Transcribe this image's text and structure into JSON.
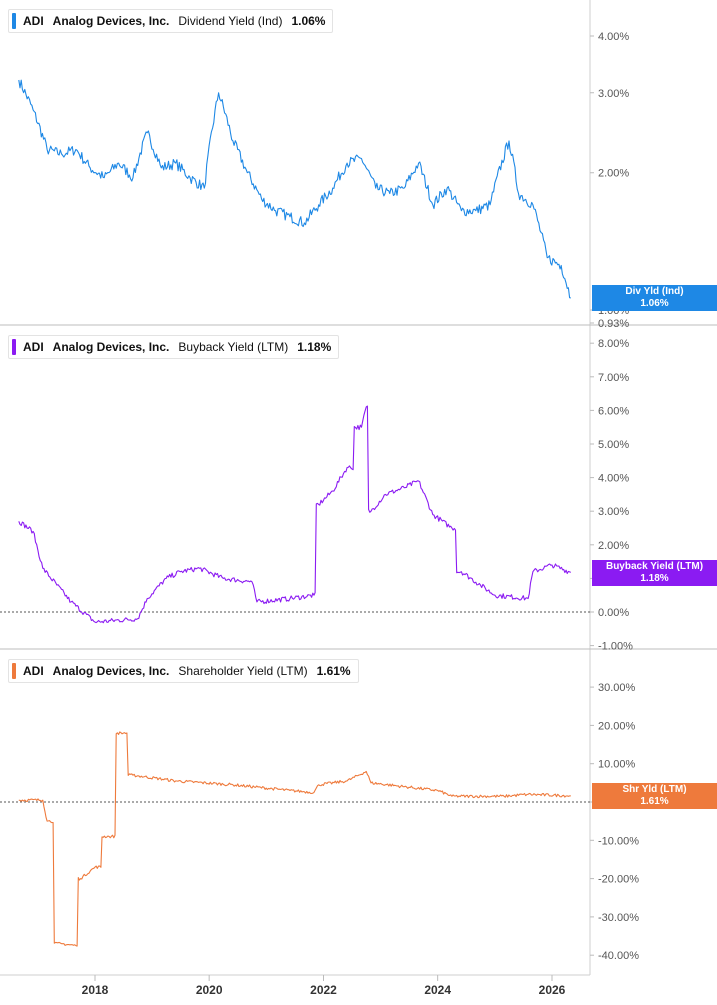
{
  "x_axis": {
    "tick_labels": [
      "2018",
      "2020",
      "2022",
      "2024",
      "2026"
    ]
  },
  "colors": {
    "dividend": "#1e88e5",
    "buyback": "#8b1bf2",
    "shareholder": "#ee7a3c",
    "zero_line": "#555555"
  },
  "panels": [
    {
      "ticker": "ADI",
      "company": "Analog Devices, Inc.",
      "metric": "Dividend Yield (Ind)",
      "value": "1.06%",
      "tag_label": "Div Yld (Ind)",
      "tag_value": "1.06%",
      "y_ticks": [
        "4.00%",
        "3.00%",
        "2.00%",
        "1.00%",
        "0.93%"
      ]
    },
    {
      "ticker": "ADI",
      "company": "Analog Devices, Inc.",
      "metric": "Buyback Yield (LTM)",
      "value": "1.18%",
      "tag_label": "Buyback Yield (LTM)",
      "tag_value": "1.18%",
      "y_ticks": [
        "8.00%",
        "7.00%",
        "6.00%",
        "5.00%",
        "4.00%",
        "3.00%",
        "2.00%",
        "1.00%",
        "0.00%",
        "-1.00%"
      ]
    },
    {
      "ticker": "ADI",
      "company": "Analog Devices, Inc.",
      "metric": "Shareholder Yield (LTM)",
      "value": "1.61%",
      "tag_label": "Shr Yld (LTM)",
      "tag_value": "1.61%",
      "y_ticks": [
        "30.00%",
        "20.00%",
        "10.00%",
        "0.00%",
        "-10.00%",
        "-20.00%",
        "-30.00%",
        "-40.00%"
      ]
    }
  ],
  "chart_data": [
    {
      "type": "line",
      "title": "ADI Analog Devices, Inc. Dividend Yield (Ind) 1.06%",
      "y_scale": "log",
      "ylim": [
        0.93,
        4.6
      ],
      "xlim": [
        "2016-08-01",
        "2026-08-01"
      ],
      "series": [
        {
          "name": "Dividend Yield (Ind)",
          "unit": "%",
          "points": [
            [
              "2016-09-01",
              3.2
            ],
            [
              "2016-12-01",
              2.75
            ],
            [
              "2017-03-01",
              2.25
            ],
            [
              "2017-06-01",
              2.2
            ],
            [
              "2017-09-01",
              2.25
            ],
            [
              "2017-12-01",
              2.05
            ],
            [
              "2018-03-01",
              1.95
            ],
            [
              "2018-06-01",
              2.1
            ],
            [
              "2018-09-01",
              1.95
            ],
            [
              "2018-12-01",
              2.45
            ],
            [
              "2019-03-01",
              2.05
            ],
            [
              "2019-06-01",
              2.1
            ],
            [
              "2019-09-01",
              1.95
            ],
            [
              "2019-12-01",
              1.85
            ],
            [
              "2020-03-01",
              3.0
            ],
            [
              "2020-06-01",
              2.35
            ],
            [
              "2020-09-01",
              2.0
            ],
            [
              "2020-12-01",
              1.75
            ],
            [
              "2021-03-01",
              1.65
            ],
            [
              "2021-06-01",
              1.6
            ],
            [
              "2021-09-01",
              1.55
            ],
            [
              "2021-12-01",
              1.7
            ],
            [
              "2022-03-01",
              1.85
            ],
            [
              "2022-06-01",
              2.1
            ],
            [
              "2022-09-01",
              2.15
            ],
            [
              "2022-12-01",
              1.85
            ],
            [
              "2023-03-01",
              1.8
            ],
            [
              "2023-06-01",
              1.85
            ],
            [
              "2023-09-01",
              2.1
            ],
            [
              "2023-12-01",
              1.7
            ],
            [
              "2024-03-01",
              1.85
            ],
            [
              "2024-06-01",
              1.65
            ],
            [
              "2024-09-01",
              1.65
            ],
            [
              "2024-12-01",
              1.7
            ],
            [
              "2025-04-01",
              2.35
            ],
            [
              "2025-06-01",
              1.8
            ],
            [
              "2025-09-01",
              1.7
            ],
            [
              "2025-12-01",
              1.3
            ],
            [
              "2026-03-01",
              1.25
            ],
            [
              "2026-05-01",
              1.06
            ]
          ]
        }
      ]
    },
    {
      "type": "line",
      "title": "ADI Analog Devices, Inc. Buyback Yield (LTM) 1.18%",
      "ylim": [
        -1.0,
        8.0
      ],
      "xlim": [
        "2016-08-01",
        "2026-08-01"
      ],
      "series": [
        {
          "name": "Buyback Yield (LTM)",
          "unit": "%",
          "points": [
            [
              "2016-09-01",
              2.7
            ],
            [
              "2016-12-01",
              2.4
            ],
            [
              "2017-02-01",
              1.3
            ],
            [
              "2017-08-01",
              0.3
            ],
            [
              "2018-01-01",
              -0.3
            ],
            [
              "2018-10-01",
              -0.2
            ],
            [
              "2018-12-01",
              0.4
            ],
            [
              "2019-04-01",
              1.0
            ],
            [
              "2019-07-01",
              1.2
            ],
            [
              "2019-11-01",
              1.3
            ],
            [
              "2020-04-01",
              1.0
            ],
            [
              "2020-10-01",
              0.9
            ],
            [
              "2020-11-01",
              0.3
            ],
            [
              "2021-06-01",
              0.4
            ],
            [
              "2021-11-01",
              0.5
            ],
            [
              "2021-12-01",
              3.2
            ],
            [
              "2022-03-01",
              3.6
            ],
            [
              "2022-06-01",
              4.3
            ],
            [
              "2022-09-01",
              5.5
            ],
            [
              "2022-10-01",
              6.1
            ],
            [
              "2022-11-01",
              3.0
            ],
            [
              "2023-02-01",
              3.5
            ],
            [
              "2023-06-01",
              3.7
            ],
            [
              "2023-09-01",
              3.9
            ],
            [
              "2023-12-01",
              2.9
            ],
            [
              "2024-04-01",
              2.5
            ],
            [
              "2024-06-01",
              1.2
            ],
            [
              "2024-10-01",
              0.8
            ],
            [
              "2025-01-01",
              0.5
            ],
            [
              "2025-08-01",
              0.4
            ],
            [
              "2025-09-01",
              1.2
            ],
            [
              "2026-01-01",
              1.4
            ],
            [
              "2026-05-01",
              1.18
            ]
          ]
        }
      ]
    },
    {
      "type": "line",
      "title": "ADI Analog Devices, Inc. Shareholder Yield (LTM) 1.61%",
      "ylim": [
        -40.0,
        30.0
      ],
      "xlim": [
        "2016-08-01",
        "2026-08-01"
      ],
      "series": [
        {
          "name": "Shareholder Yield (LTM)",
          "unit": "%",
          "points": [
            [
              "2016-09-01",
              0.5
            ],
            [
              "2017-02-01",
              0.5
            ],
            [
              "2017-03-01",
              -5.0
            ],
            [
              "2017-06-01",
              -37.0
            ],
            [
              "2017-09-01",
              -37.5
            ],
            [
              "2017-10-01",
              -20.0
            ],
            [
              "2018-01-01",
              -17.0
            ],
            [
              "2018-04-01",
              -9.0
            ],
            [
              "2018-07-01",
              18.0
            ],
            [
              "2018-09-01",
              7.0
            ],
            [
              "2019-06-01",
              5.5
            ],
            [
              "2020-06-01",
              4.5
            ],
            [
              "2021-06-01",
              3.0
            ],
            [
              "2021-11-01",
              2.5
            ],
            [
              "2021-12-01",
              4.5
            ],
            [
              "2022-06-01",
              5.5
            ],
            [
              "2022-10-01",
              8.0
            ],
            [
              "2022-11-01",
              5.0
            ],
            [
              "2023-06-01",
              4.0
            ],
            [
              "2024-01-01",
              3.0
            ],
            [
              "2024-04-01",
              1.5
            ],
            [
              "2025-03-01",
              1.5
            ],
            [
              "2025-08-01",
              2.0
            ],
            [
              "2026-05-01",
              1.61
            ]
          ]
        }
      ]
    }
  ]
}
